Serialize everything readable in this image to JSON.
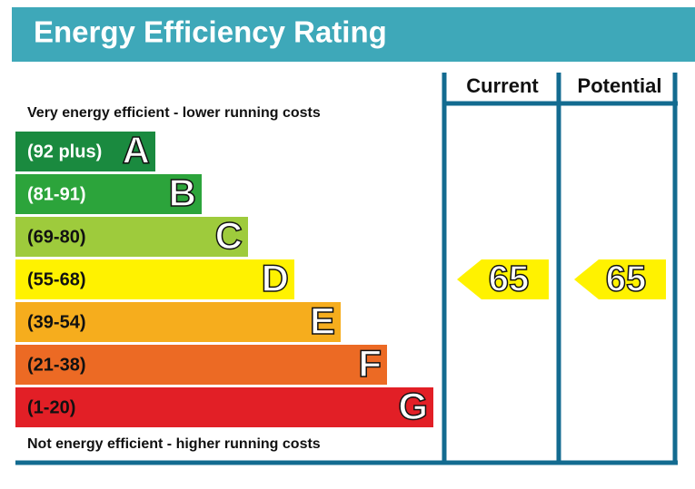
{
  "chart_data": {
    "type": "epc",
    "title": "Energy Efficiency Rating",
    "top_note": "Very energy efficient - lower running costs",
    "bottom_note": "Not energy efficient - higher running costs",
    "bands": [
      {
        "range": "(92 plus)",
        "letter": "A",
        "color": "#1a8a3f",
        "label_color": "#ffffff"
      },
      {
        "range": "(81-91)",
        "letter": "B",
        "color": "#2ca43b",
        "label_color": "#ffffff"
      },
      {
        "range": "(69-80)",
        "letter": "C",
        "color": "#9ecb3c",
        "label_color": "#111111"
      },
      {
        "range": "(55-68)",
        "letter": "D",
        "color": "#fff200",
        "label_color": "#111111"
      },
      {
        "range": "(39-54)",
        "letter": "E",
        "color": "#f6ad1d",
        "label_color": "#111111"
      },
      {
        "range": "(21-38)",
        "letter": "F",
        "color": "#ec6a24",
        "label_color": "#111111"
      },
      {
        "range": "(1-20)",
        "letter": "G",
        "color": "#e21f26",
        "label_color": "#111111"
      }
    ],
    "columns": [
      {
        "name": "Current",
        "value": 65,
        "color": "#fff200"
      },
      {
        "name": "Potential",
        "value": 65,
        "color": "#fff200"
      }
    ]
  }
}
